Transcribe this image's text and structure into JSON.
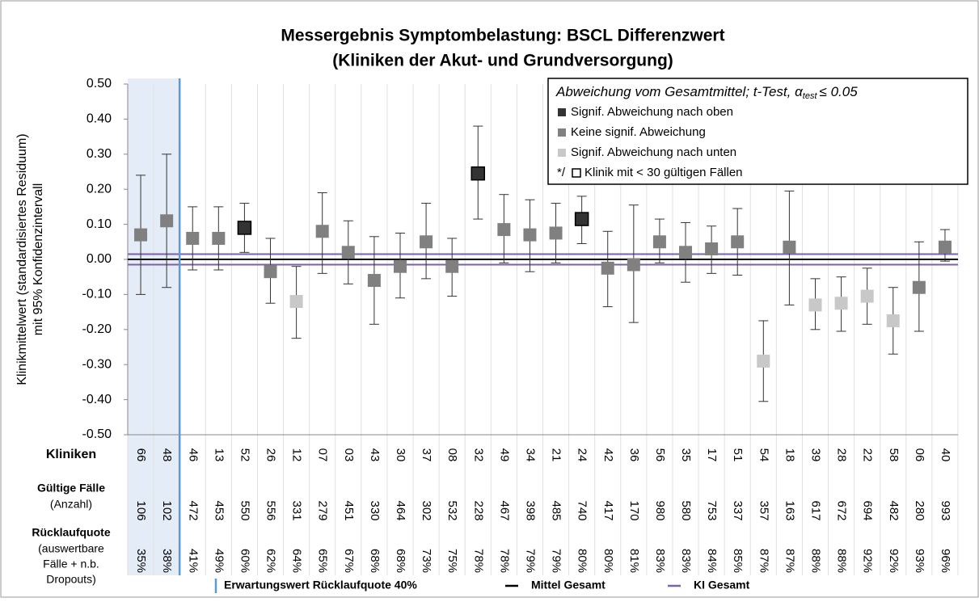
{
  "chart_data": {
    "type": "errorbar",
    "title": "Messergebnis Symptombelastung: BSCL Differenzwert",
    "subtitle": "(Kliniken der Akut- und Grundversorgung)",
    "y_label": [
      "Klinikmittelwert (standardisiertes Residuum)",
      "mit 95% Konfidenzintervall"
    ],
    "ylim": [
      -0.5,
      0.5
    ],
    "yticks": [
      {
        "value": 0.5,
        "label": "0.50"
      },
      {
        "value": 0.4,
        "label": "0.40"
      },
      {
        "value": 0.3,
        "label": "0.30"
      },
      {
        "value": 0.2,
        "label": "0.20"
      },
      {
        "value": 0.1,
        "label": "0.10"
      },
      {
        "value": 0,
        "label": "0.00"
      },
      {
        "value": -0.1,
        "label": "-0.10"
      },
      {
        "value": -0.2,
        "label": "-0.20"
      },
      {
        "value": -0.3,
        "label": "-0.30"
      },
      {
        "value": -0.4,
        "label": "-0.40"
      },
      {
        "value": -0.5,
        "label": "-0.50"
      }
    ],
    "categories_label": "Kliniken",
    "categories": [
      "66",
      "48",
      "46",
      "13",
      "52",
      "26",
      "12",
      "07",
      "03",
      "43",
      "30",
      "37",
      "08",
      "32",
      "49",
      "34",
      "21",
      "24",
      "42",
      "36",
      "56",
      "35",
      "17",
      "51",
      "54",
      "18",
      "39",
      "28",
      "22",
      "58",
      "06",
      "40"
    ],
    "cases": {
      "label": "Gültige Fälle",
      "sublabel": "(Anzahl)",
      "values": [
        106,
        102,
        472,
        453,
        550,
        556,
        331,
        279,
        451,
        330,
        464,
        302,
        532,
        228,
        467,
        398,
        485,
        740,
        417,
        170,
        980,
        580,
        753,
        337,
        357,
        163,
        617,
        672,
        694,
        482,
        280,
        993
      ]
    },
    "response_rate": {
      "label": "Rücklaufquote",
      "sublabel": [
        "(auswertbare",
        "Fälle + n.b.",
        "Dropouts)"
      ],
      "values": [
        35,
        38,
        41,
        49,
        60,
        62,
        64,
        65,
        67,
        68,
        68,
        73,
        75,
        78,
        78,
        79,
        79,
        80,
        80,
        81,
        83,
        83,
        84,
        85,
        87,
        87,
        88,
        88,
        92,
        92,
        93,
        96
      ],
      "value_labels": [
        "35%",
        "38%",
        "41%",
        "49%",
        "60%",
        "62%",
        "64%",
        "65%",
        "67%",
        "68%",
        "68%",
        "73%",
        "75%",
        "78%",
        "78%",
        "79%",
        "79%",
        "80%",
        "80%",
        "81%",
        "83%",
        "83%",
        "84%",
        "85%",
        "87%",
        "87%",
        "88%",
        "88%",
        "92%",
        "92%",
        "93%",
        "96%"
      ]
    },
    "series": [
      {
        "values": [
          0.07,
          0.11,
          0.06,
          0.06,
          0.09,
          -0.035,
          -0.12,
          0.08,
          0.02,
          -0.06,
          -0.02,
          0.05,
          -0.02,
          0.245,
          0.085,
          0.07,
          0.075,
          0.115,
          -0.025,
          -0.015,
          0.05,
          0.02,
          0.03,
          0.05,
          -0.29,
          0.035,
          -0.13,
          -0.125,
          -0.105,
          -0.175,
          -0.08,
          0.035
        ],
        "ci_low": [
          -0.1,
          -0.08,
          -0.03,
          -0.03,
          0.02,
          -0.125,
          -0.225,
          -0.04,
          -0.07,
          -0.185,
          -0.11,
          -0.055,
          -0.105,
          0.115,
          -0.01,
          -0.035,
          -0.01,
          0.045,
          -0.135,
          -0.18,
          -0.01,
          -0.065,
          -0.04,
          -0.045,
          -0.405,
          -0.13,
          -0.2,
          -0.205,
          -0.185,
          -0.27,
          -0.205,
          -0.005
        ],
        "ci_high": [
          0.24,
          0.3,
          0.15,
          0.15,
          0.16,
          0.06,
          -0.02,
          0.19,
          0.11,
          0.065,
          0.075,
          0.16,
          0.06,
          0.38,
          0.185,
          0.17,
          0.16,
          0.18,
          0.08,
          0.155,
          0.115,
          0.105,
          0.095,
          0.145,
          -0.175,
          0.195,
          -0.055,
          -0.05,
          -0.025,
          -0.08,
          0.05,
          0.085
        ],
        "groups": [
          1,
          1,
          1,
          1,
          0,
          1,
          2,
          1,
          1,
          1,
          1,
          1,
          1,
          0,
          1,
          1,
          1,
          0,
          1,
          1,
          1,
          1,
          1,
          1,
          2,
          1,
          2,
          2,
          2,
          2,
          1,
          1
        ]
      }
    ],
    "legend": {
      "title": "Abweichung vom Gesamtmittel; t-Test, α",
      "title_sub": "test",
      "title_end": "≤ 0.05",
      "items": [
        {
          "name": "Signif. Abweichung nach oben",
          "color": "#333333"
        },
        {
          "name": "Keine signif. Abweichung",
          "color": "#808080"
        },
        {
          "name": "Signif. Abweichung nach unten",
          "color": "#c8c8c8"
        }
      ],
      "small_prefix": "*/",
      "small_name": "Klinik mit < 30 gültigen Fällen"
    },
    "reference": {
      "name": "Erwartungswert Rücklaufquote 40%",
      "value": 40,
      "color": "#5b9bd5"
    },
    "mean_line": {
      "name": "Mittel Gesamt",
      "value": 0,
      "color": "#000000"
    },
    "ci_line": {
      "name": "KI Gesamt",
      "values": [
        -0.015,
        0.015
      ],
      "color": "#7b61a8"
    }
  }
}
